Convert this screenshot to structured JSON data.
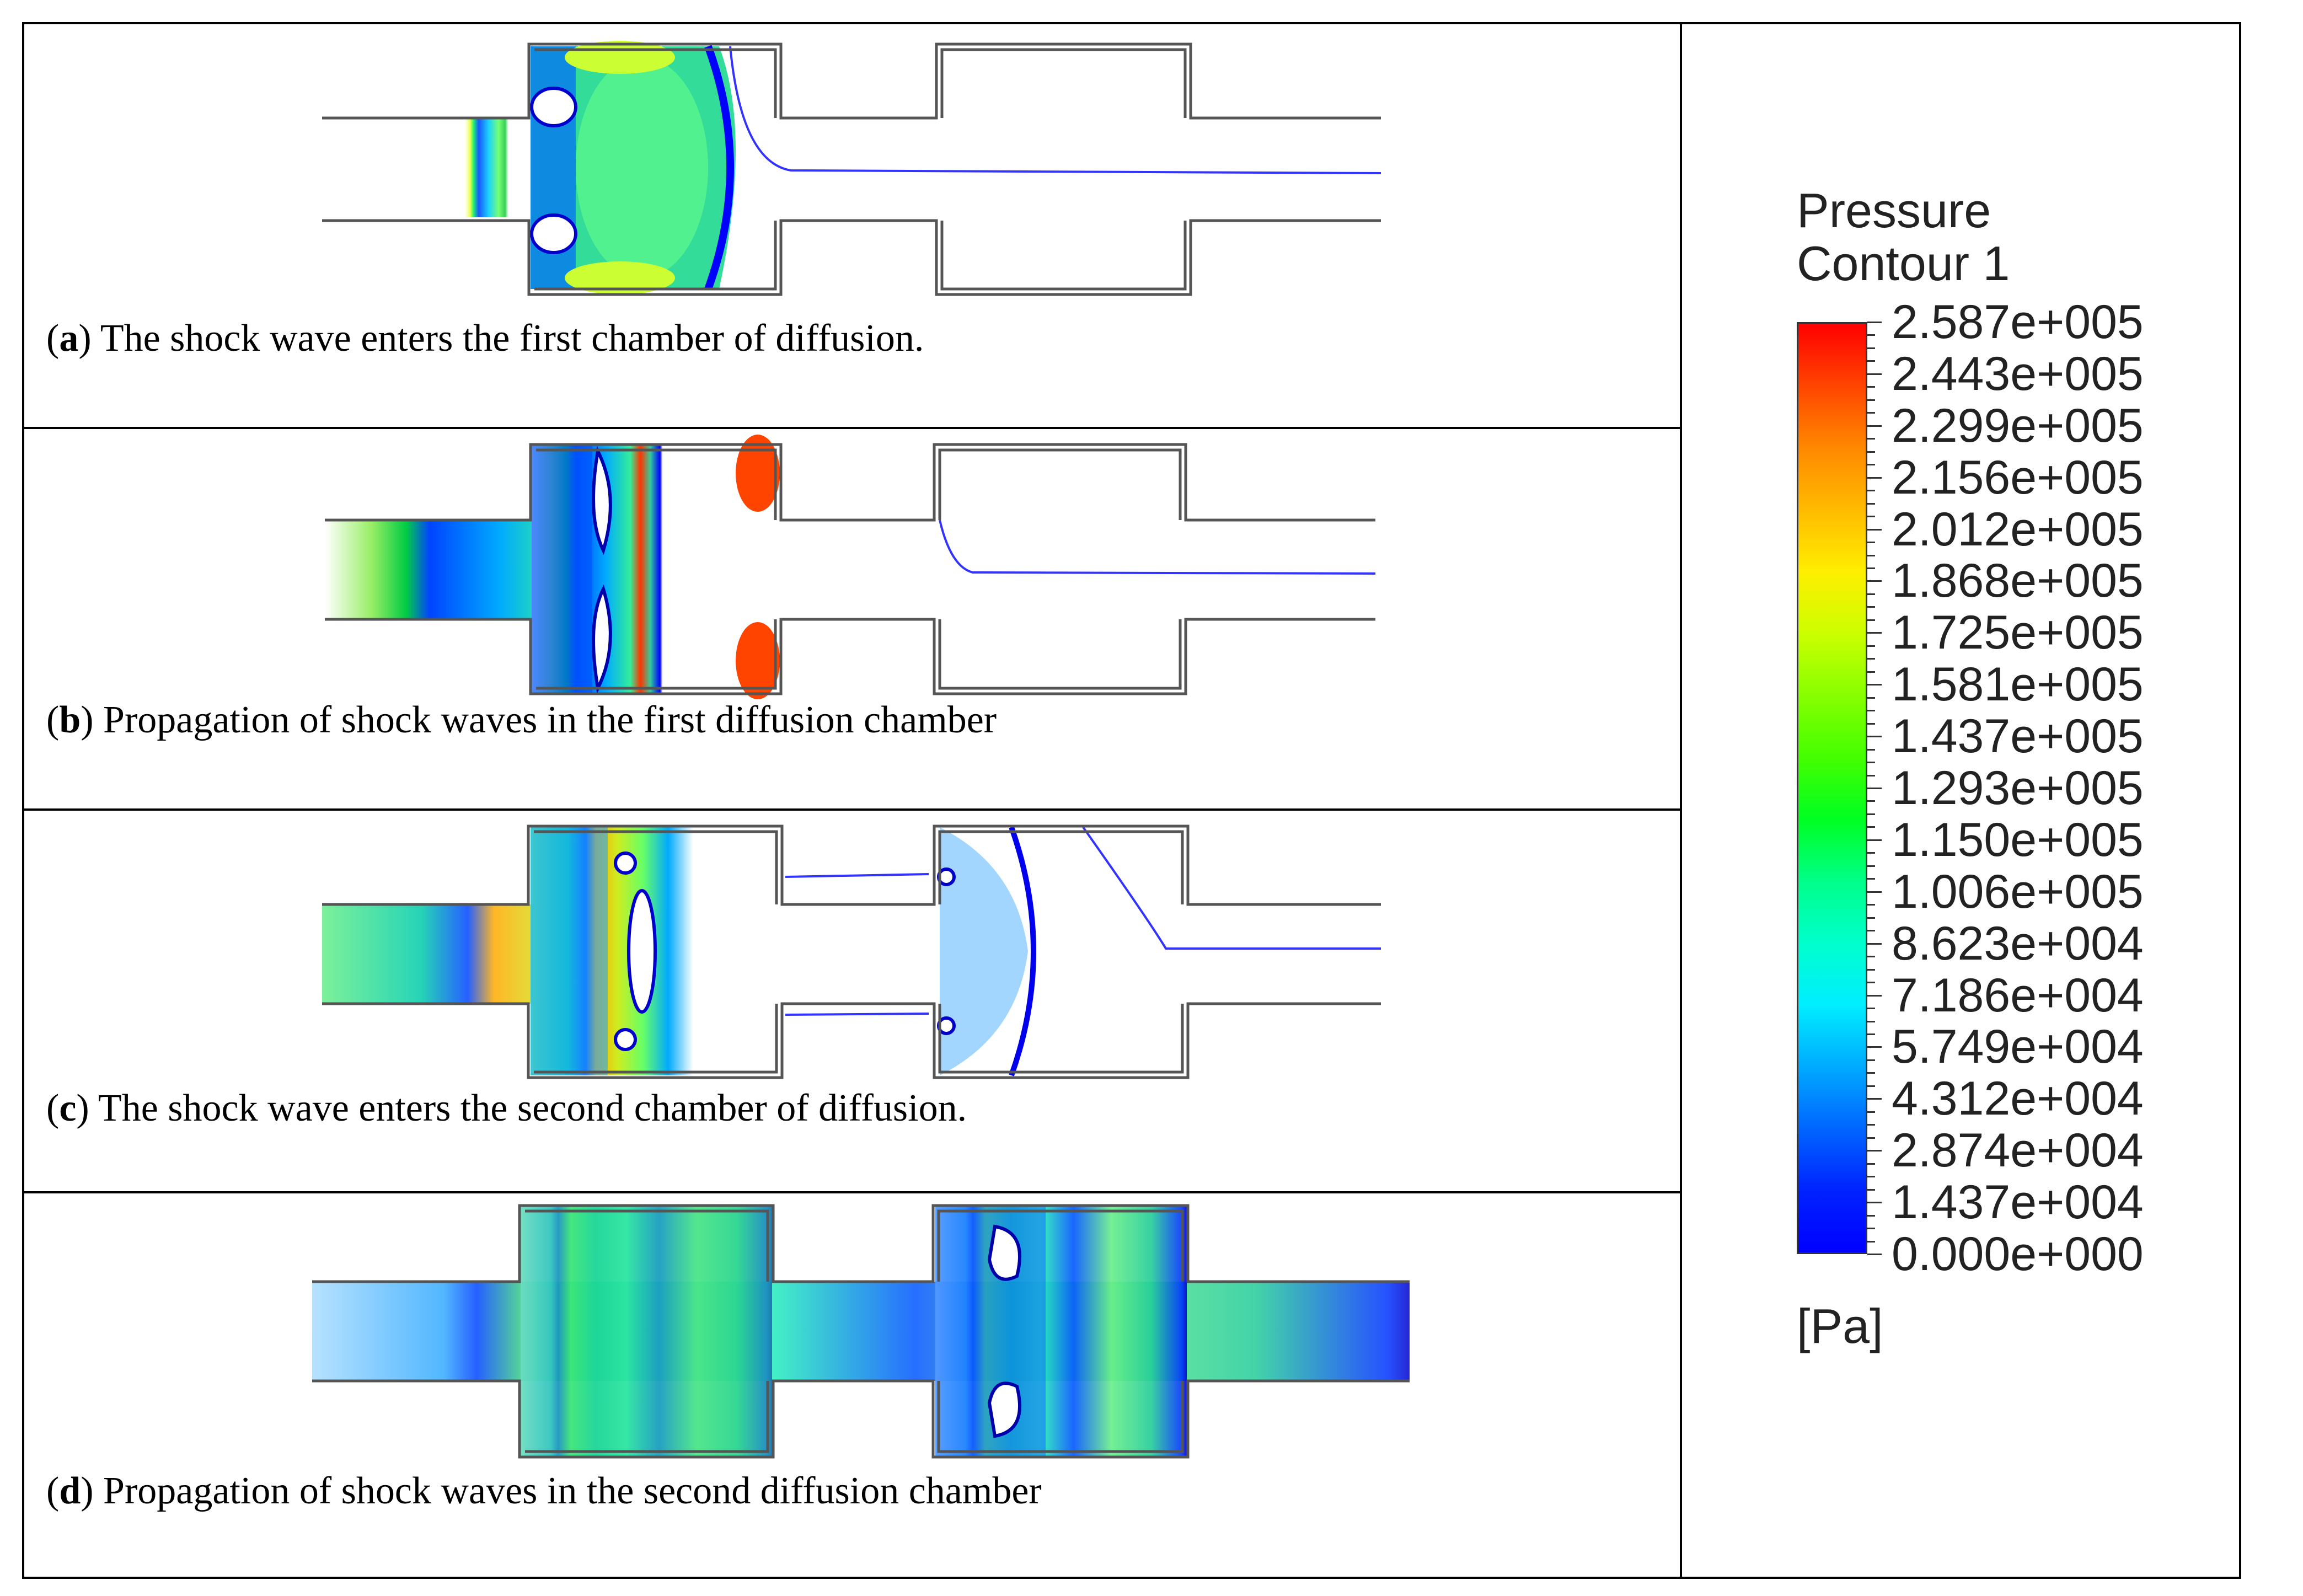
{
  "panels": [
    {
      "id": "a",
      "letter": "a",
      "caption": ") The shock wave enters the first chamber of diffusion."
    },
    {
      "id": "b",
      "letter": "b",
      "caption": ") Propagation of shock waves in the first diffusion chamber"
    },
    {
      "id": "c",
      "letter": "c",
      "caption": ") The shock wave enters the second chamber of diffusion."
    },
    {
      "id": "d",
      "letter": "d",
      "caption": ") Propagation of shock waves in the second diffusion chamber"
    }
  ],
  "legend": {
    "title_line1": "Pressure",
    "title_line2": "Contour 1",
    "unit": "[Pa]",
    "labels": [
      "2.587e+005",
      "2.443e+005",
      "2.299e+005",
      "2.156e+005",
      "2.012e+005",
      "1.868e+005",
      "1.725e+005",
      "1.581e+005",
      "1.437e+005",
      "1.293e+005",
      "1.150e+005",
      "1.006e+005",
      "8.623e+004",
      "7.186e+004",
      "5.749e+004",
      "4.312e+004",
      "2.874e+004",
      "1.437e+004",
      "0.000e+000"
    ],
    "colors": [
      "#ff0000",
      "#ff4400",
      "#ff8800",
      "#ffbb00",
      "#ffee00",
      "#ccff00",
      "#88ff00",
      "#44ff00",
      "#00ff22",
      "#00ff88",
      "#00ffcc",
      "#00eeff",
      "#00aaff",
      "#0066ff",
      "#0022ff",
      "#0000ff"
    ]
  }
}
